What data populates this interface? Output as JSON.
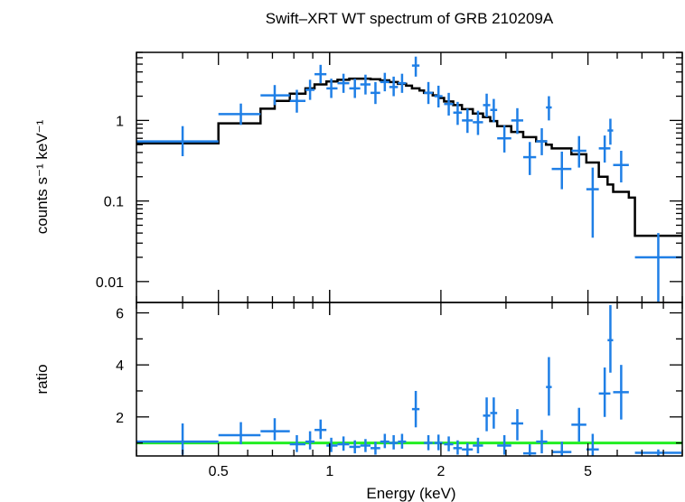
{
  "chart_data": {
    "type": "scatter",
    "title": "Swift–XRT WT spectrum of GRB 210209A",
    "xlabel": "Energy (keV)",
    "x_scale": "log",
    "xlim": [
      0.3,
      9.0
    ],
    "x_ticks": [
      {
        "value": 0.5,
        "label": "0.5"
      },
      {
        "value": 1,
        "label": "1"
      },
      {
        "value": 2,
        "label": "2"
      },
      {
        "value": 5,
        "label": "5"
      }
    ],
    "panels": [
      {
        "name": "spectrum",
        "ylabel": "counts s⁻¹ keV⁻¹",
        "y_scale": "log",
        "ylim": [
          0.0055,
          7.0
        ],
        "y_ticks": [
          {
            "value": 0.01,
            "label": "0.01"
          },
          {
            "value": 0.1,
            "label": "0.1"
          },
          {
            "value": 1,
            "label": "1"
          }
        ],
        "data_color": "#1f7fe6",
        "model_color": "#000000",
        "data": [
          {
            "x": 0.4,
            "xlo": 0.3,
            "xhi": 0.5,
            "y": 0.55,
            "ylo": 0.36,
            "yhi": 0.85
          },
          {
            "x": 0.575,
            "xlo": 0.5,
            "xhi": 0.65,
            "y": 1.2,
            "ylo": 0.88,
            "yhi": 1.62
          },
          {
            "x": 0.71,
            "xlo": 0.65,
            "xhi": 0.78,
            "y": 2.05,
            "ylo": 1.55,
            "yhi": 2.75
          },
          {
            "x": 0.815,
            "xlo": 0.78,
            "xhi": 0.86,
            "y": 1.75,
            "ylo": 1.25,
            "yhi": 2.4
          },
          {
            "x": 0.885,
            "xlo": 0.86,
            "xhi": 0.91,
            "y": 2.4,
            "ylo": 1.8,
            "yhi": 3.2
          },
          {
            "x": 0.945,
            "xlo": 0.91,
            "xhi": 0.98,
            "y": 3.75,
            "ylo": 2.9,
            "yhi": 4.9
          },
          {
            "x": 1.01,
            "xlo": 0.98,
            "xhi": 1.05,
            "y": 2.5,
            "ylo": 1.9,
            "yhi": 3.3
          },
          {
            "x": 1.09,
            "xlo": 1.05,
            "xhi": 1.13,
            "y": 2.9,
            "ylo": 2.2,
            "yhi": 3.8
          },
          {
            "x": 1.17,
            "xlo": 1.13,
            "xhi": 1.21,
            "y": 2.5,
            "ylo": 1.9,
            "yhi": 3.3
          },
          {
            "x": 1.25,
            "xlo": 1.21,
            "xhi": 1.29,
            "y": 2.8,
            "ylo": 2.1,
            "yhi": 3.7
          },
          {
            "x": 1.33,
            "xlo": 1.29,
            "xhi": 1.37,
            "y": 2.2,
            "ylo": 1.6,
            "yhi": 3.0
          },
          {
            "x": 1.41,
            "xlo": 1.37,
            "xhi": 1.45,
            "y": 3.0,
            "ylo": 2.3,
            "yhi": 3.9
          },
          {
            "x": 1.49,
            "xlo": 1.45,
            "xhi": 1.53,
            "y": 2.6,
            "ylo": 2.0,
            "yhi": 3.5
          },
          {
            "x": 1.57,
            "xlo": 1.53,
            "xhi": 1.61,
            "y": 2.9,
            "ylo": 2.2,
            "yhi": 3.8
          },
          {
            "x": 1.71,
            "xlo": 1.67,
            "xhi": 1.75,
            "y": 4.8,
            "ylo": 3.5,
            "yhi": 6.2
          },
          {
            "x": 1.85,
            "xlo": 1.8,
            "xhi": 1.9,
            "y": 2.2,
            "ylo": 1.6,
            "yhi": 3.0
          },
          {
            "x": 1.97,
            "xlo": 1.92,
            "xhi": 2.02,
            "y": 2.0,
            "ylo": 1.45,
            "yhi": 2.7
          },
          {
            "x": 2.1,
            "xlo": 2.04,
            "xhi": 2.16,
            "y": 1.6,
            "ylo": 1.15,
            "yhi": 2.2
          },
          {
            "x": 2.22,
            "xlo": 2.16,
            "xhi": 2.28,
            "y": 1.25,
            "ylo": 0.88,
            "yhi": 1.7
          },
          {
            "x": 2.36,
            "xlo": 2.28,
            "xhi": 2.44,
            "y": 1.0,
            "ylo": 0.7,
            "yhi": 1.4
          },
          {
            "x": 2.52,
            "xlo": 2.44,
            "xhi": 2.6,
            "y": 0.95,
            "ylo": 0.66,
            "yhi": 1.32
          },
          {
            "x": 2.66,
            "xlo": 2.6,
            "xhi": 2.72,
            "y": 1.55,
            "ylo": 1.1,
            "yhi": 2.15
          },
          {
            "x": 2.78,
            "xlo": 2.72,
            "xhi": 2.84,
            "y": 1.35,
            "ylo": 0.95,
            "yhi": 1.85
          },
          {
            "x": 2.97,
            "xlo": 2.84,
            "xhi": 3.1,
            "y": 0.6,
            "ylo": 0.4,
            "yhi": 0.87
          },
          {
            "x": 3.22,
            "xlo": 3.1,
            "xhi": 3.34,
            "y": 1.0,
            "ylo": 0.68,
            "yhi": 1.42
          },
          {
            "x": 3.48,
            "xlo": 3.34,
            "xhi": 3.62,
            "y": 0.35,
            "ylo": 0.21,
            "yhi": 0.54
          },
          {
            "x": 3.75,
            "xlo": 3.62,
            "xhi": 3.88,
            "y": 0.55,
            "ylo": 0.37,
            "yhi": 0.8
          },
          {
            "x": 3.92,
            "xlo": 3.85,
            "xhi": 3.99,
            "y": 1.45,
            "ylo": 1.0,
            "yhi": 2.0
          },
          {
            "x": 4.25,
            "xlo": 3.99,
            "xhi": 4.51,
            "y": 0.25,
            "ylo": 0.14,
            "yhi": 0.41
          },
          {
            "x": 4.73,
            "xlo": 4.51,
            "xhi": 4.95,
            "y": 0.42,
            "ylo": 0.26,
            "yhi": 0.64
          },
          {
            "x": 5.15,
            "xlo": 4.95,
            "xhi": 5.35,
            "y": 0.14,
            "ylo": 0.035,
            "yhi": 0.26
          },
          {
            "x": 5.55,
            "xlo": 5.35,
            "xhi": 5.75,
            "y": 0.45,
            "ylo": 0.3,
            "yhi": 0.65
          },
          {
            "x": 5.75,
            "xlo": 5.65,
            "xhi": 5.85,
            "y": 0.75,
            "ylo": 0.5,
            "yhi": 1.05
          },
          {
            "x": 6.15,
            "xlo": 5.85,
            "xhi": 6.45,
            "y": 0.28,
            "ylo": 0.17,
            "yhi": 0.42
          },
          {
            "x": 7.75,
            "xlo": 6.7,
            "xhi": 8.95,
            "y": 0.02,
            "ylo": 0.0056,
            "yhi": 0.04
          }
        ],
        "model_steps": [
          {
            "x0": 0.3,
            "x1": 0.5,
            "y": 0.52
          },
          {
            "x0": 0.5,
            "x1": 0.65,
            "y": 0.92
          },
          {
            "x0": 0.65,
            "x1": 0.71,
            "y": 1.4
          },
          {
            "x0": 0.71,
            "x1": 0.78,
            "y": 1.75
          },
          {
            "x0": 0.78,
            "x1": 0.86,
            "y": 2.15
          },
          {
            "x0": 0.86,
            "x1": 0.91,
            "y": 2.5
          },
          {
            "x0": 0.91,
            "x1": 0.98,
            "y": 2.8
          },
          {
            "x0": 0.98,
            "x1": 1.05,
            "y": 3.05
          },
          {
            "x0": 1.05,
            "x1": 1.13,
            "y": 3.2
          },
          {
            "x0": 1.13,
            "x1": 1.21,
            "y": 3.3
          },
          {
            "x0": 1.21,
            "x1": 1.29,
            "y": 3.3
          },
          {
            "x0": 1.29,
            "x1": 1.37,
            "y": 3.25
          },
          {
            "x0": 1.37,
            "x1": 1.45,
            "y": 3.15
          },
          {
            "x0": 1.45,
            "x1": 1.53,
            "y": 3.0
          },
          {
            "x0": 1.53,
            "x1": 1.61,
            "y": 2.85
          },
          {
            "x0": 1.61,
            "x1": 1.67,
            "y": 2.7
          },
          {
            "x0": 1.67,
            "x1": 1.75,
            "y": 2.5
          },
          {
            "x0": 1.75,
            "x1": 1.8,
            "y": 2.35
          },
          {
            "x0": 1.8,
            "x1": 1.9,
            "y": 2.2
          },
          {
            "x0": 1.9,
            "x1": 1.97,
            "y": 2.05
          },
          {
            "x0": 1.97,
            "x1": 2.04,
            "y": 1.9
          },
          {
            "x0": 2.04,
            "x1": 2.16,
            "y": 1.72
          },
          {
            "x0": 2.16,
            "x1": 2.28,
            "y": 1.55
          },
          {
            "x0": 2.28,
            "x1": 2.44,
            "y": 1.38
          },
          {
            "x0": 2.44,
            "x1": 2.6,
            "y": 1.22
          },
          {
            "x0": 2.6,
            "x1": 2.72,
            "y": 1.1
          },
          {
            "x0": 2.72,
            "x1": 2.84,
            "y": 0.98
          },
          {
            "x0": 2.84,
            "x1": 3.1,
            "y": 0.85
          },
          {
            "x0": 3.1,
            "x1": 3.34,
            "y": 0.72
          },
          {
            "x0": 3.34,
            "x1": 3.62,
            "y": 0.62
          },
          {
            "x0": 3.62,
            "x1": 3.85,
            "y": 0.55
          },
          {
            "x0": 3.85,
            "x1": 3.99,
            "y": 0.5
          },
          {
            "x0": 3.99,
            "x1": 4.51,
            "y": 0.45
          },
          {
            "x0": 4.51,
            "x1": 4.95,
            "y": 0.38
          },
          {
            "x0": 4.95,
            "x1": 5.35,
            "y": 0.3
          },
          {
            "x0": 5.35,
            "x1": 5.65,
            "y": 0.2
          },
          {
            "x0": 5.65,
            "x1": 5.85,
            "y": 0.16
          },
          {
            "x0": 5.85,
            "x1": 6.45,
            "y": 0.13
          },
          {
            "x0": 6.45,
            "x1": 6.7,
            "y": 0.11
          },
          {
            "x0": 6.7,
            "x1": 9.0,
            "y": 0.037
          }
        ]
      },
      {
        "name": "ratio",
        "ylabel": "ratio",
        "y_scale": "linear",
        "ylim": [
          0.5,
          6.4
        ],
        "y_ticks": [
          {
            "value": 2,
            "label": "2"
          },
          {
            "value": 4,
            "label": "4"
          },
          {
            "value": 6,
            "label": "6"
          }
        ],
        "reference_line": {
          "y": 1,
          "color": "#22ee22"
        },
        "data_color": "#1f7fe6",
        "data": [
          {
            "x": 0.4,
            "xlo": 0.3,
            "xhi": 0.5,
            "y": 1.05,
            "ylo": 0.55,
            "yhi": 1.75
          },
          {
            "x": 0.575,
            "xlo": 0.5,
            "xhi": 0.65,
            "y": 1.3,
            "ylo": 0.95,
            "yhi": 1.8
          },
          {
            "x": 0.71,
            "xlo": 0.65,
            "xhi": 0.78,
            "y": 1.45,
            "ylo": 1.1,
            "yhi": 1.95
          },
          {
            "x": 0.815,
            "xlo": 0.78,
            "xhi": 0.86,
            "y": 0.95,
            "ylo": 0.65,
            "yhi": 1.3
          },
          {
            "x": 0.885,
            "xlo": 0.86,
            "xhi": 0.91,
            "y": 1.05,
            "ylo": 0.75,
            "yhi": 1.45
          },
          {
            "x": 0.945,
            "xlo": 0.91,
            "xhi": 0.98,
            "y": 1.5,
            "ylo": 1.15,
            "yhi": 1.9
          },
          {
            "x": 1.01,
            "xlo": 0.98,
            "xhi": 1.05,
            "y": 0.9,
            "ylo": 0.65,
            "yhi": 1.2
          },
          {
            "x": 1.09,
            "xlo": 1.05,
            "xhi": 1.13,
            "y": 0.95,
            "ylo": 0.7,
            "yhi": 1.25
          },
          {
            "x": 1.17,
            "xlo": 1.13,
            "xhi": 1.21,
            "y": 0.85,
            "ylo": 0.6,
            "yhi": 1.1
          },
          {
            "x": 1.25,
            "xlo": 1.21,
            "xhi": 1.29,
            "y": 0.9,
            "ylo": 0.65,
            "yhi": 1.15
          },
          {
            "x": 1.33,
            "xlo": 1.29,
            "xhi": 1.37,
            "y": 0.8,
            "ylo": 0.55,
            "yhi": 1.05
          },
          {
            "x": 1.41,
            "xlo": 1.37,
            "xhi": 1.45,
            "y": 1.05,
            "ylo": 0.8,
            "yhi": 1.35
          },
          {
            "x": 1.49,
            "xlo": 1.45,
            "xhi": 1.53,
            "y": 1.0,
            "ylo": 0.75,
            "yhi": 1.3
          },
          {
            "x": 1.57,
            "xlo": 1.53,
            "xhi": 1.61,
            "y": 1.05,
            "ylo": 0.78,
            "yhi": 1.35
          },
          {
            "x": 1.71,
            "xlo": 1.67,
            "xhi": 1.75,
            "y": 2.3,
            "ylo": 1.6,
            "yhi": 3.0
          },
          {
            "x": 1.85,
            "xlo": 1.8,
            "xhi": 1.9,
            "y": 1.0,
            "ylo": 0.72,
            "yhi": 1.3
          },
          {
            "x": 1.97,
            "xlo": 1.92,
            "xhi": 2.02,
            "y": 1.0,
            "ylo": 0.72,
            "yhi": 1.32
          },
          {
            "x": 2.1,
            "xlo": 2.04,
            "xhi": 2.16,
            "y": 0.95,
            "ylo": 0.68,
            "yhi": 1.25
          },
          {
            "x": 2.22,
            "xlo": 2.16,
            "xhi": 2.28,
            "y": 0.8,
            "ylo": 0.55,
            "yhi": 1.1
          },
          {
            "x": 2.36,
            "xlo": 2.28,
            "xhi": 2.44,
            "y": 0.75,
            "ylo": 0.5,
            "yhi": 1.0
          },
          {
            "x": 2.52,
            "xlo": 2.44,
            "xhi": 2.6,
            "y": 0.9,
            "ylo": 0.6,
            "yhi": 1.2
          },
          {
            "x": 2.66,
            "xlo": 2.6,
            "xhi": 2.72,
            "y": 2.05,
            "ylo": 1.45,
            "yhi": 2.75
          },
          {
            "x": 2.78,
            "xlo": 2.72,
            "xhi": 2.84,
            "y": 2.15,
            "ylo": 1.55,
            "yhi": 2.75
          },
          {
            "x": 2.97,
            "xlo": 2.84,
            "xhi": 3.1,
            "y": 0.9,
            "ylo": 0.55,
            "yhi": 1.3
          },
          {
            "x": 3.22,
            "xlo": 3.1,
            "xhi": 3.34,
            "y": 1.75,
            "ylo": 1.1,
            "yhi": 2.3
          },
          {
            "x": 3.48,
            "xlo": 3.34,
            "xhi": 3.62,
            "y": 0.6,
            "ylo": 0.5,
            "yhi": 0.95
          },
          {
            "x": 3.75,
            "xlo": 3.62,
            "xhi": 3.88,
            "y": 1.05,
            "ylo": 0.6,
            "yhi": 1.5
          },
          {
            "x": 3.92,
            "xlo": 3.85,
            "xhi": 3.99,
            "y": 3.15,
            "ylo": 2.05,
            "yhi": 4.3
          },
          {
            "x": 4.25,
            "xlo": 3.99,
            "xhi": 4.51,
            "y": 0.65,
            "ylo": 0.5,
            "yhi": 1.05
          },
          {
            "x": 4.73,
            "xlo": 4.51,
            "xhi": 4.95,
            "y": 1.7,
            "ylo": 1.05,
            "yhi": 2.35
          },
          {
            "x": 5.15,
            "xlo": 4.95,
            "xhi": 5.35,
            "y": 0.75,
            "ylo": 0.5,
            "yhi": 1.35
          },
          {
            "x": 5.55,
            "xlo": 5.35,
            "xhi": 5.75,
            "y": 2.9,
            "ylo": 2.0,
            "yhi": 3.9
          },
          {
            "x": 5.75,
            "xlo": 5.65,
            "xhi": 5.85,
            "y": 4.95,
            "ylo": 3.7,
            "yhi": 6.3
          },
          {
            "x": 6.15,
            "xlo": 5.85,
            "xhi": 6.45,
            "y": 2.95,
            "ylo": 1.9,
            "yhi": 4.0
          },
          {
            "x": 7.75,
            "xlo": 6.7,
            "xhi": 8.95,
            "y": 0.62,
            "ylo": 0.5,
            "yhi": 0.75
          }
        ]
      }
    ],
    "grid": false,
    "legend": "none"
  }
}
